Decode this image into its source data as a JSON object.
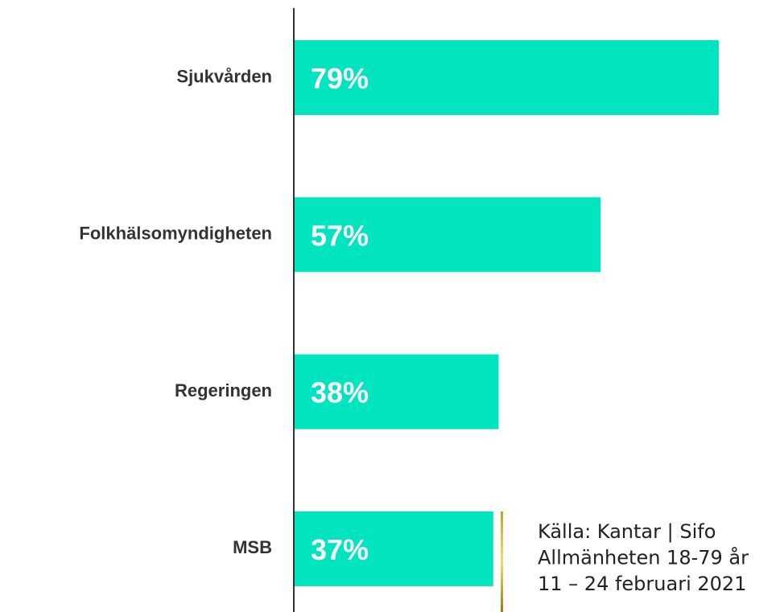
{
  "chart_data": {
    "type": "bar",
    "orientation": "horizontal",
    "categories": [
      "Sjukvården",
      "Folkhälsomyndigheten",
      "Regeringen",
      "MSB"
    ],
    "values": [
      79,
      57,
      38,
      37
    ],
    "value_labels": [
      "79%",
      "57%",
      "38%",
      "37%"
    ],
    "color": "#00e5bf",
    "source": [
      "Källa: Kantar | Sifo",
      "Allmänheten 18-79 år",
      "11 – 24 februari 2021"
    ]
  }
}
